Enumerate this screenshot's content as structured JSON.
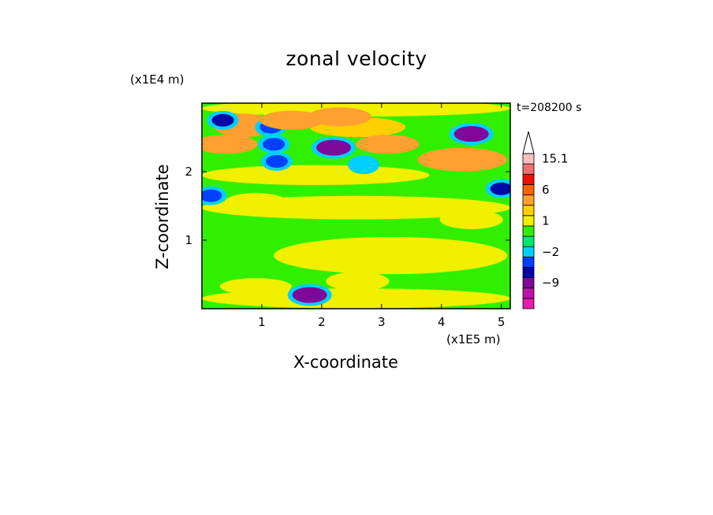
{
  "chart_data": {
    "type": "heatmap",
    "title": "zonal velocity",
    "xlabel": "X-coordinate",
    "ylabel": "Z-coordinate",
    "x_unit_label": "(x1E5 m)",
    "y_unit_label": "(x1E4 m)",
    "timestamp": "t=208200 s",
    "xlim": [
      0,
      5.15
    ],
    "ylim": [
      0,
      3.0
    ],
    "x_ticks": [
      1,
      2,
      3,
      4,
      5
    ],
    "y_ticks": [
      1,
      2
    ],
    "x_tick_labels": [
      "1",
      "2",
      "3",
      "4",
      "5"
    ],
    "y_tick_labels": [
      "1",
      "2"
    ],
    "colorbar": {
      "levels": [
        -15,
        -12,
        -9,
        -6,
        -4,
        -2,
        -1,
        0,
        1,
        2,
        4,
        6,
        8,
        11,
        15.1
      ],
      "colors": [
        "#e818b0",
        "#b814a8",
        "#800898",
        "#0008a8",
        "#0040ff",
        "#00d0ff",
        "#00e870",
        "#30f000",
        "#f0f000",
        "#ffd000",
        "#ffa030",
        "#ff6000",
        "#f01000",
        "#f07070",
        "#f8c0c0"
      ],
      "tick_labels": [
        "15.1",
        "6",
        "1",
        "-2",
        "-9"
      ],
      "tick_values": [
        15.1,
        6,
        1,
        -2,
        -9
      ],
      "extend": "max"
    },
    "features": [
      {
        "x": 0.35,
        "z": 2.75,
        "value": -6
      },
      {
        "x": 1.15,
        "z": 2.65,
        "value": -4
      },
      {
        "x": 1.2,
        "z": 2.4,
        "value": -4
      },
      {
        "x": 2.2,
        "z": 2.35,
        "value": -9
      },
      {
        "x": 1.25,
        "z": 2.15,
        "value": -4
      },
      {
        "x": 2.7,
        "z": 2.1,
        "value": -2
      },
      {
        "x": 4.5,
        "z": 2.55,
        "value": -9
      },
      {
        "x": 5.0,
        "z": 1.75,
        "value": -6
      },
      {
        "x": 0.15,
        "z": 1.65,
        "value": -4
      },
      {
        "x": 1.8,
        "z": 0.2,
        "value": -9
      },
      {
        "x": 0.4,
        "z": 2.4,
        "value": 4
      },
      {
        "x": 1.5,
        "z": 2.75,
        "value": 4
      },
      {
        "x": 2.3,
        "z": 2.8,
        "value": 4
      },
      {
        "x": 3.1,
        "z": 2.4,
        "value": 4
      },
      {
        "x": 4.5,
        "z": 2.15,
        "value": 4
      },
      {
        "x": 3.2,
        "z": 0.9,
        "value": 1
      },
      {
        "x": 2.6,
        "z": 0.4,
        "value": 1
      },
      {
        "x": 0.9,
        "z": 1.55,
        "value": 1
      },
      {
        "x": 4.5,
        "z": 1.3,
        "value": 1
      }
    ]
  }
}
